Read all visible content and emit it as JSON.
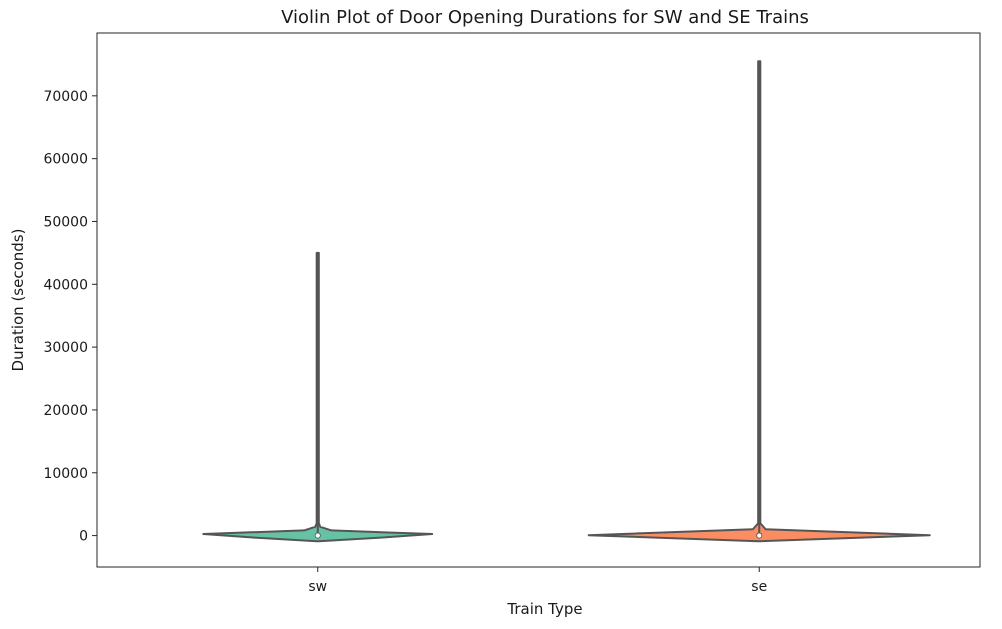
{
  "chart_data": {
    "type": "violin",
    "title": "Violin Plot of Door Opening Durations for SW and SE Trains",
    "xlabel": "Train Type",
    "ylabel": "Duration (seconds)",
    "categories": [
      "sw",
      "se"
    ],
    "ylim": [
      -5000,
      80000
    ],
    "yticks": [
      0,
      10000,
      20000,
      30000,
      40000,
      50000,
      60000,
      70000
    ],
    "grid": false,
    "series": [
      {
        "category": "sw",
        "color": "#66c2a5",
        "min": 0,
        "max": 45000,
        "median": 0,
        "q1": 0,
        "q3": 300
      },
      {
        "category": "se",
        "color": "#fc8d62",
        "min": 0,
        "max": 75500,
        "median": 0,
        "q1": 0,
        "q3": 400
      }
    ]
  }
}
